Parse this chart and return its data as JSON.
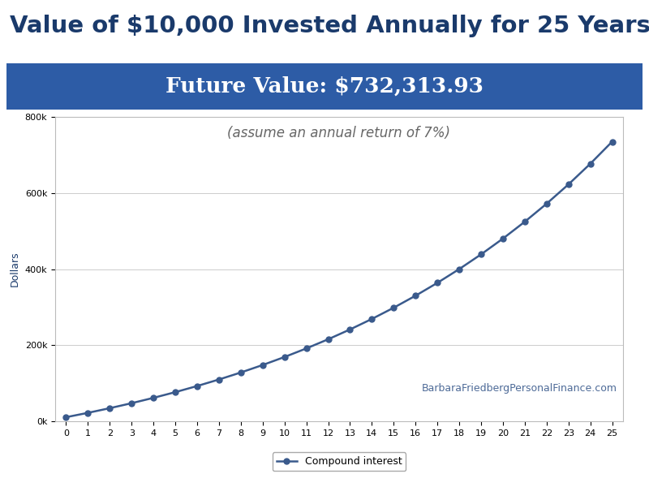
{
  "title": "Value of $10,000 Invested Annually for 25 Years",
  "future_value_label": "Future Value: $732,313.93",
  "subtitle": "(assume an annual return of 7%)",
  "watermark": "BarbaraFriedbergPersonalFinance.com",
  "ylabel": "Dollars",
  "annual_investment": 10000,
  "annual_return": 0.07,
  "years": 25,
  "line_color": "#3a5a8c",
  "marker_color": "#3a5a8c",
  "background_color": "#ffffff",
  "plot_bg_color": "#ffffff",
  "banner_bg_color": "#2d5ca6",
  "banner_text_color": "#ffffff",
  "title_color": "#1a3a6b",
  "subtitle_color": "#666666",
  "watermark_color": "#3a5a8c",
  "ytick_labels": [
    "0k",
    "200k",
    "400k",
    "600k",
    "800k"
  ],
  "ytick_values": [
    0,
    200000,
    400000,
    600000,
    800000
  ],
  "legend_label": "Compound interest",
  "title_fontsize": 21,
  "banner_fontsize": 19,
  "subtitle_fontsize": 12,
  "ylabel_fontsize": 9,
  "tick_fontsize": 8,
  "watermark_fontsize": 9,
  "legend_fontsize": 9
}
